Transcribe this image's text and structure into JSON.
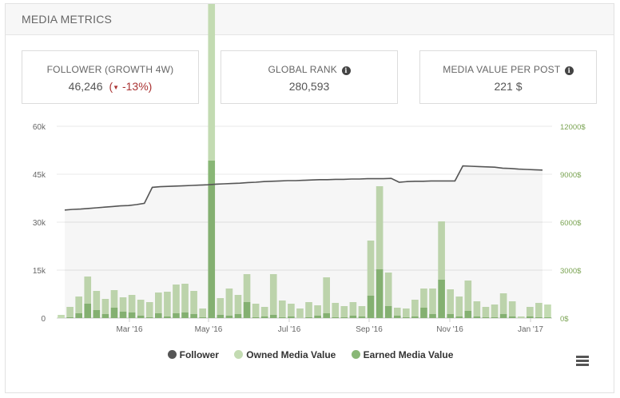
{
  "panel": {
    "title": "MEDIA METRICS"
  },
  "cards": {
    "follower": {
      "title": "FOLLOWER (GROWTH 4W)",
      "value": "46,246",
      "growth": "-13%",
      "growth_open": "(",
      "growth_close": ")"
    },
    "rank": {
      "title": "GLOBAL RANK",
      "value": "280,593"
    },
    "mediavalue": {
      "title": "MEDIA VALUE PER POST",
      "value": "221 $"
    }
  },
  "legend": {
    "follower": "Follower",
    "owned": "Owned Media Value",
    "earned": "Earned Media Value"
  },
  "colors": {
    "follower": "#555555",
    "owned": "#c3dbb2",
    "earned": "#89b776",
    "right_axis_text": "#7aa352",
    "growth_negative": "#a33333"
  },
  "chart_data": {
    "type": "bar+line",
    "x_tick_labels": [
      "Mar '16",
      "May '16",
      "Jul '16",
      "Sep '16",
      "Nov '16",
      "Jan '17"
    ],
    "y_left": {
      "ticks": [
        "0",
        "15k",
        "30k",
        "45k",
        "60k"
      ],
      "range": [
        0,
        60000
      ]
    },
    "y_right": {
      "ticks": [
        "0$",
        "3000$",
        "6000$",
        "9000$",
        "12000$"
      ],
      "range": [
        0,
        12000
      ]
    },
    "series": [
      {
        "name": "Follower",
        "kind": "line",
        "axis": "left",
        "values": [
          33800,
          34000,
          34100,
          34300,
          34500,
          34700,
          34900,
          35100,
          35200,
          35500,
          35900,
          40900,
          41100,
          41200,
          41300,
          41400,
          41500,
          41600,
          41700,
          41900,
          42000,
          42100,
          42200,
          42400,
          42500,
          42700,
          42800,
          42900,
          43000,
          43000,
          43100,
          43200,
          43300,
          43300,
          43400,
          43400,
          43500,
          43500,
          43600,
          43600,
          43600,
          43700,
          42500,
          42700,
          42800,
          42800,
          42900,
          42900,
          42900,
          42900,
          47600,
          47500,
          47400,
          47300,
          47200,
          46900,
          46800,
          46600,
          46500,
          46400,
          46300
        ]
      },
      {
        "name": "Owned Media Value",
        "kind": "bar",
        "axis": "right",
        "values": [
          200,
          650,
          1050,
          1700,
          1200,
          950,
          1100,
          900,
          1100,
          1000,
          950,
          1300,
          1550,
          1800,
          1800,
          1450,
          550,
          11000,
          1050,
          1700,
          1200,
          1750,
          850,
          600,
          2550,
          1050,
          800,
          600,
          950,
          650,
          2250,
          900,
          700,
          850,
          650,
          3450,
          5200,
          2100,
          500,
          550,
          1050,
          1200,
          1600,
          3650,
          1550,
          1250,
          1900,
          950,
          650,
          800,
          1300,
          950,
          100,
          600,
          900,
          800
        ]
      },
      {
        "name": "Earned Media Value",
        "kind": "bar",
        "axis": "right",
        "values": [
          0,
          50,
          300,
          900,
          500,
          250,
          650,
          400,
          350,
          150,
          50,
          300,
          100,
          300,
          350,
          250,
          50,
          9850,
          200,
          150,
          250,
          1000,
          50,
          100,
          200,
          50,
          100,
          0,
          50,
          150,
          300,
          50,
          50,
          150,
          100,
          1400,
          3050,
          750,
          150,
          50,
          100,
          650,
          250,
          2400,
          250,
          100,
          450,
          100,
          50,
          50,
          250,
          100,
          0,
          100,
          50,
          50
        ]
      }
    ]
  }
}
